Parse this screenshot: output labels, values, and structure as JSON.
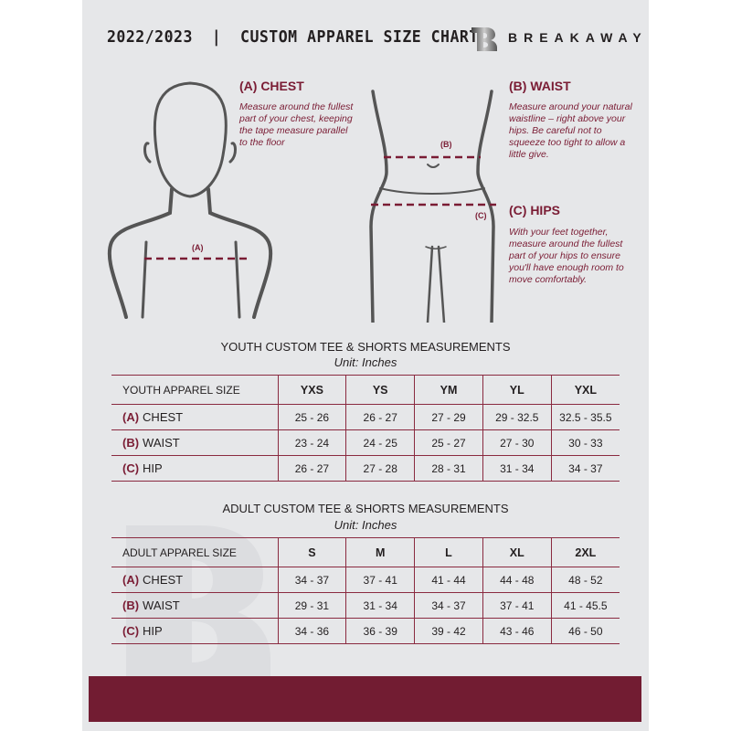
{
  "header": {
    "title": "2022/2023  |  CUSTOM APPAREL SIZE CHART",
    "brand": "BREAKAWAY",
    "logo_letter": "B"
  },
  "guides": {
    "chest": {
      "heading": "(A) CHEST",
      "text": "Measure around the fullest part of your chest, keeping the tape measure parallel to the floor",
      "marker": "(A)"
    },
    "waist": {
      "heading": "(B) WAIST",
      "text": "Measure around your natural waistline – right above your hips. Be careful not to squeeze too tight to allow a little give.",
      "marker": "(B)"
    },
    "hips": {
      "heading": "(C) HIPS",
      "text": "With your feet together, measure around the fullest part of your hips to ensure you'll have enough room to move comfortably.",
      "marker": "(C)"
    }
  },
  "youth": {
    "title": "YOUTH CUSTOM TEE & SHORTS MEASUREMENTS",
    "unit": "Unit: Inches",
    "header_label": "YOUTH APPAREL SIZE",
    "sizes": [
      "YXS",
      "YS",
      "YM",
      "YL",
      "YXL"
    ],
    "rows": [
      {
        "code": "(A)",
        "label": "CHEST",
        "values": [
          "25 - 26",
          "26 - 27",
          "27 - 29",
          "29 - 32.5",
          "32.5 - 35.5"
        ]
      },
      {
        "code": "(B)",
        "label": "WAIST",
        "values": [
          "23 - 24",
          "24 - 25",
          "25 - 27",
          "27 - 30",
          "30 - 33"
        ]
      },
      {
        "code": "(C)",
        "label": "HIP",
        "values": [
          "26 - 27",
          "27 - 28",
          "28 - 31",
          "31 - 34",
          "34 - 37"
        ]
      }
    ]
  },
  "adult": {
    "title": "ADULT CUSTOM TEE & SHORTS MEASUREMENTS",
    "unit": "Unit: Inches",
    "header_label": "ADULT APPAREL SIZE",
    "sizes": [
      "S",
      "M",
      "L",
      "XL",
      "2XL"
    ],
    "rows": [
      {
        "code": "(A)",
        "label": "CHEST",
        "values": [
          "34 - 37",
          "37 - 41",
          "41 - 44",
          "44 - 48",
          "48 - 52"
        ]
      },
      {
        "code": "(B)",
        "label": "WAIST",
        "values": [
          "29 - 31",
          "31 - 34",
          "34 - 37",
          "37 - 41",
          "41 - 45.5"
        ]
      },
      {
        "code": "(C)",
        "label": "HIP",
        "values": [
          "34 - 36",
          "36 - 39",
          "39 - 42",
          "43 - 46",
          "46 - 50"
        ]
      }
    ]
  },
  "colors": {
    "accent": "#7a1c34",
    "footer": "#721c32",
    "background": "#e6e7e9"
  }
}
